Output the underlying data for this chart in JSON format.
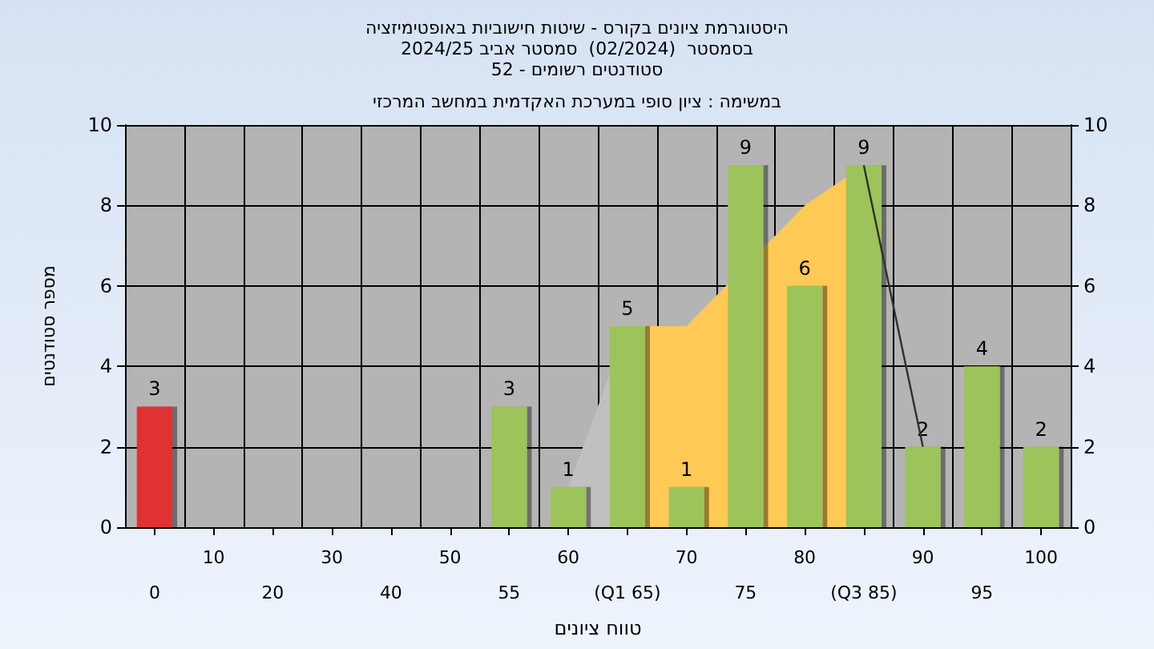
{
  "chart_data": {
    "type": "bar",
    "title": "היסטוגרמת ציונים בקורס - שיטות חישוביות באופטימיזציה",
    "subtitle": "בסמסטר  (02/2024)  סמסטר אביב 2024/25\nסטודנטים רשומים - 52",
    "xlabel": "טווח ציונים",
    "ylabel": "מספר סטודנטים",
    "annotations": [
      "במשימה : ציון סופי במערכת האקדמית במחשב המרכזי"
    ],
    "categories": [
      "0",
      "10",
      "20",
      "30",
      "40",
      "50",
      "55",
      "60",
      "(Q1 65)",
      "70",
      "75",
      "80",
      "(Q3 85)",
      "90",
      "95",
      "100"
    ],
    "series": [
      {
        "type": "area",
        "color": "#c0c0c0",
        "values": [
          null,
          null,
          null,
          null,
          null,
          null,
          null,
          1,
          5,
          null,
          null,
          null,
          null,
          null,
          null,
          null
        ]
      },
      {
        "type": "area",
        "color": "#ffc955",
        "values": [
          null,
          null,
          null,
          null,
          null,
          null,
          null,
          null,
          5,
          5,
          null,
          8,
          9,
          null,
          null,
          null
        ]
      },
      {
        "type": "line",
        "color": "#303030",
        "values": [
          null,
          null,
          null,
          null,
          null,
          null,
          null,
          null,
          null,
          null,
          null,
          null,
          9,
          2,
          null,
          null
        ]
      },
      {
        "colors": [
          "#e03030",
          "#9cc45a",
          "#9cc45a",
          "#9cc45a",
          "#9cc45a",
          "#9cc45a",
          "#9cc45a",
          "#9cc45a",
          "#9cc45a",
          "#9cc45a",
          "#9cc45a",
          "#9cc45a",
          "#9cc45a",
          "#9cc45a",
          "#9cc45a",
          "#9cc45a"
        ],
        "values": [
          3,
          0,
          0,
          0,
          0,
          0,
          3,
          1,
          5,
          1,
          9,
          6,
          9,
          2,
          4,
          2
        ],
        "value_labels": [
          "3",
          null,
          null,
          null,
          null,
          null,
          "3",
          "1",
          "5",
          "1",
          "9",
          "6",
          "9",
          "2",
          "4",
          "2"
        ]
      }
    ],
    "ylim": [
      0,
      10
    ],
    "yticks": [
      0,
      2,
      4,
      6,
      8,
      10
    ],
    "y2lim": [
      0,
      10
    ],
    "y2ticks": [
      0,
      2,
      4,
      6,
      8,
      10
    ],
    "grid": true,
    "marker": "none"
  }
}
